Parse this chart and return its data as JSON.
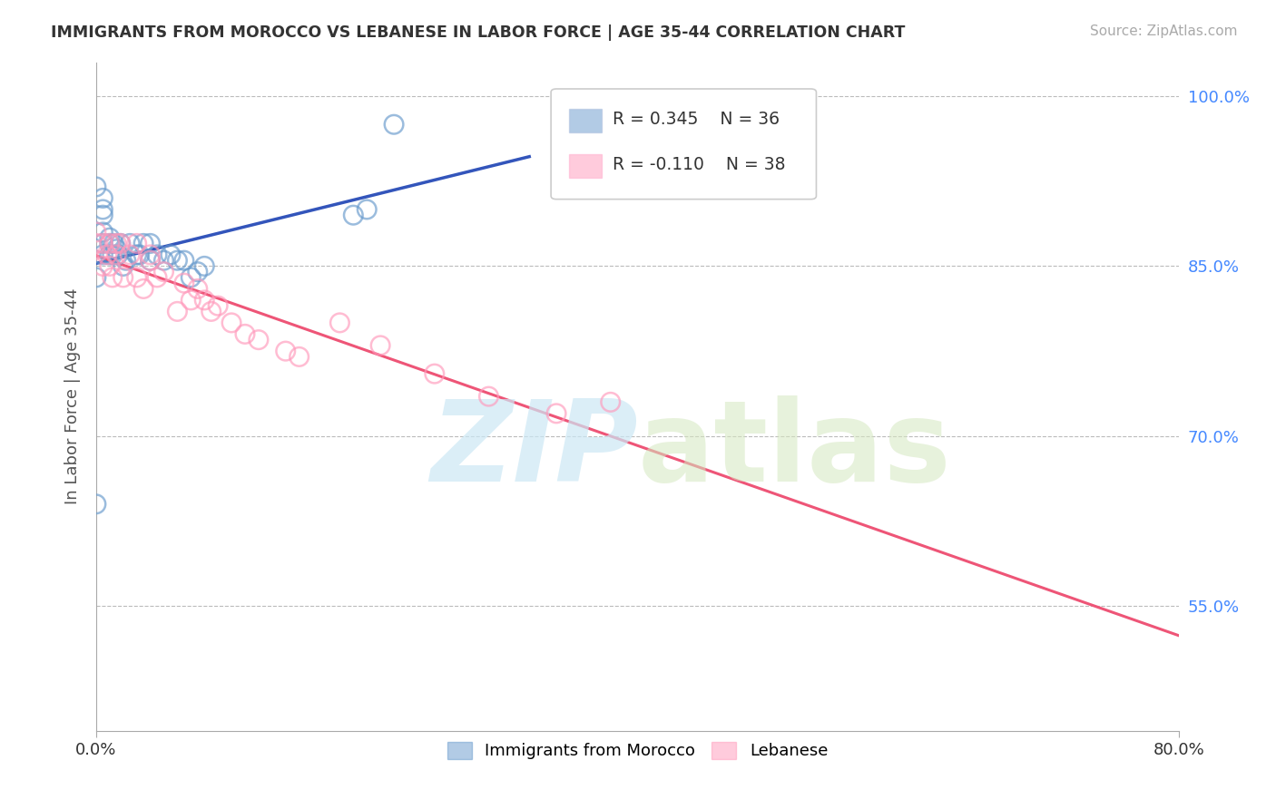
{
  "title": "IMMIGRANTS FROM MOROCCO VS LEBANESE IN LABOR FORCE | AGE 35-44 CORRELATION CHART",
  "source": "Source: ZipAtlas.com",
  "ylabel": "In Labor Force | Age 35-44",
  "xlim": [
    0.0,
    0.8
  ],
  "ylim": [
    0.44,
    1.03
  ],
  "ytick_values": [
    0.55,
    0.7,
    0.85,
    1.0
  ],
  "xtick_values": [
    0.0,
    0.8
  ],
  "morocco_color": "#6699cc",
  "lebanese_color": "#ff99bb",
  "morocco_R": 0.345,
  "morocco_N": 36,
  "lebanese_R": -0.11,
  "lebanese_N": 38,
  "morocco_x": [
    0.0,
    0.0,
    0.0,
    0.005,
    0.005,
    0.005,
    0.005,
    0.005,
    0.005,
    0.01,
    0.01,
    0.01,
    0.012,
    0.013,
    0.015,
    0.016,
    0.018,
    0.02,
    0.022,
    0.025,
    0.03,
    0.032,
    0.035,
    0.04,
    0.04,
    0.045,
    0.05,
    0.055,
    0.06,
    0.065,
    0.07,
    0.075,
    0.08,
    0.19,
    0.2,
    0.22
  ],
  "morocco_y": [
    0.64,
    0.84,
    0.92,
    0.86,
    0.87,
    0.88,
    0.895,
    0.9,
    0.91,
    0.86,
    0.87,
    0.875,
    0.86,
    0.87,
    0.865,
    0.86,
    0.87,
    0.85,
    0.855,
    0.87,
    0.86,
    0.86,
    0.87,
    0.855,
    0.87,
    0.86,
    0.855,
    0.86,
    0.855,
    0.855,
    0.84,
    0.845,
    0.85,
    0.895,
    0.9,
    0.975
  ],
  "lebanese_x": [
    0.0,
    0.0,
    0.005,
    0.005,
    0.008,
    0.01,
    0.01,
    0.012,
    0.015,
    0.015,
    0.018,
    0.02,
    0.025,
    0.03,
    0.03,
    0.035,
    0.04,
    0.04,
    0.045,
    0.05,
    0.06,
    0.065,
    0.07,
    0.075,
    0.08,
    0.085,
    0.09,
    0.1,
    0.11,
    0.12,
    0.14,
    0.15,
    0.18,
    0.21,
    0.25,
    0.29,
    0.34,
    0.38
  ],
  "lebanese_y": [
    0.87,
    0.88,
    0.85,
    0.87,
    0.86,
    0.85,
    0.87,
    0.84,
    0.87,
    0.86,
    0.87,
    0.84,
    0.86,
    0.84,
    0.87,
    0.83,
    0.855,
    0.86,
    0.84,
    0.845,
    0.81,
    0.835,
    0.82,
    0.83,
    0.82,
    0.81,
    0.815,
    0.8,
    0.79,
    0.785,
    0.775,
    0.77,
    0.8,
    0.78,
    0.755,
    0.735,
    0.72,
    0.73
  ],
  "watermark_zip": "ZIP",
  "watermark_atlas": "atlas",
  "background_color": "#ffffff",
  "grid_color": "#bbbbbb",
  "trendline_blue": "#3355bb",
  "trendline_pink": "#ee5577"
}
